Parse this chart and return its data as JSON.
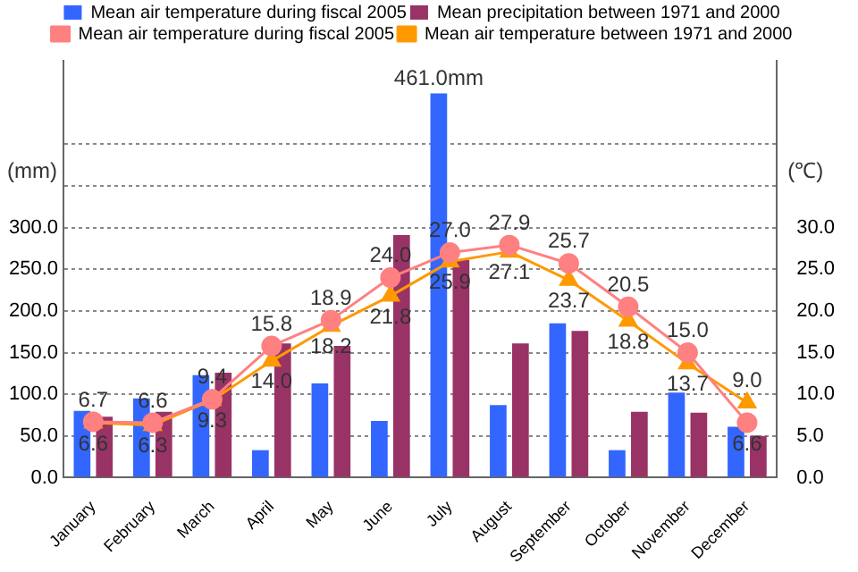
{
  "chart_data": {
    "type": "bar",
    "categories": [
      "January",
      "February",
      "March",
      "April",
      "May",
      "June",
      "July",
      "August",
      "September",
      "October",
      "November",
      "December"
    ],
    "ylabel": "(mm)",
    "y2label": "(℃)",
    "ylim": [
      0,
      500
    ],
    "yticks": [
      {
        "value": 0,
        "label": "0.0"
      },
      {
        "value": 50,
        "label": "50.0"
      },
      {
        "value": 100,
        "label": "100.0"
      },
      {
        "value": 150,
        "label": "150.0"
      },
      {
        "value": 200,
        "label": "200.0"
      },
      {
        "value": 250,
        "label": "250.0"
      },
      {
        "value": 300,
        "label": "300.0"
      },
      {
        "value": 350,
        "label": null
      },
      {
        "value": 400,
        "label": null
      }
    ],
    "y2lim": [
      0,
      50
    ],
    "y2ticks": [
      {
        "value": 0,
        "label": "0.0"
      },
      {
        "value": 5,
        "label": "5.0"
      },
      {
        "value": 10,
        "label": "10.0"
      },
      {
        "value": 15,
        "label": "15.0"
      },
      {
        "value": 20,
        "label": "20.0"
      },
      {
        "value": 25,
        "label": "25.0"
      },
      {
        "value": 30,
        "label": "30.0"
      },
      {
        "value": 35,
        "label": null
      },
      {
        "value": 40,
        "label": null
      }
    ],
    "grid": "y",
    "legend": "top",
    "series": [
      {
        "name": "Mean air temperature during fiscal 2005",
        "color": "#3366ff",
        "values": [
          80,
          95,
          123,
          33,
          113,
          68,
          461,
          87,
          185,
          33,
          102,
          61
        ],
        "value_labels": [
          null,
          null,
          null,
          null,
          null,
          null,
          "461.0mm",
          null,
          null,
          null,
          null,
          null
        ]
      },
      {
        "name": "Mean precipitation between 1971 and 2000",
        "color": "#993366",
        "values": [
          73,
          79,
          126,
          161,
          158,
          291,
          261,
          161,
          176,
          79,
          78,
          50
        ]
      },
      {
        "name": "Mean air temperature during fiscal 2005",
        "type": "line",
        "axis": "y2",
        "color": "#ff8080",
        "marker": "circle",
        "values": [
          6.7,
          6.6,
          9.4,
          15.8,
          18.9,
          24.0,
          27.0,
          27.9,
          25.7,
          20.5,
          15.0,
          6.6
        ],
        "value_labels": [
          "6.7",
          "6.6",
          "9.4",
          "15.8",
          "18.9",
          "24.0",
          "27.0",
          "27.9",
          "25.7",
          "20.5",
          "15.0",
          "6.6"
        ]
      },
      {
        "name": "Mean air temperature between 1971 and 2000",
        "type": "line",
        "axis": "y2",
        "color": "#ff9900",
        "marker": "triangle",
        "values": [
          6.6,
          6.3,
          9.3,
          14.0,
          18.2,
          21.8,
          25.9,
          27.1,
          23.7,
          18.8,
          13.7,
          9.0
        ],
        "value_labels": [
          "6.6",
          "6.3",
          "9.3",
          "14.0",
          "18.2",
          "21.8",
          "25.9",
          "27.1",
          "23.7",
          "18.8",
          "13.7",
          "9.0"
        ]
      }
    ]
  }
}
